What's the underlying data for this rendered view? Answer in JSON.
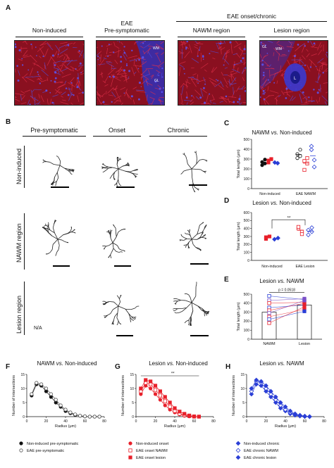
{
  "panelA": {
    "letter": "A",
    "headers": {
      "non_induced": "Non-induced",
      "eae": "EAE",
      "pre_symptomatic": "Pre-symptomatic",
      "onset_chronic": "EAE onset/chronic",
      "nawm_region": "NAWM region",
      "lesion_region": "Lesion region"
    },
    "inset_labels": {
      "wm": "WM",
      "gl": "GL",
      "l": "L"
    }
  },
  "panelB": {
    "letter": "B",
    "columns": [
      "Pre-symptomatic",
      "Onset",
      "Chronic"
    ],
    "rows": [
      "Non-induced",
      "NAWM region",
      "Lesion region"
    ],
    "na_text": "N/A"
  },
  "panelC": {
    "letter": "C",
    "title_a": "NAWM ",
    "title_vs": "vs.",
    "title_b": " Non-induced"
  },
  "panelD": {
    "letter": "D",
    "title_a": "Lesion ",
    "title_vs": "vs.",
    "title_b": " Non-induced",
    "sig": "**"
  },
  "panelE": {
    "letter": "E",
    "title_a": "Lesion ",
    "title_vs": "vs.",
    "title_b": " NAWM",
    "pvalue": "p = 0.0518"
  },
  "panelF": {
    "letter": "F",
    "title_a": "NAWM ",
    "title_vs": "vs.",
    "title_b": " Non-induced"
  },
  "panelG": {
    "letter": "G",
    "title_a": "Lesion ",
    "title_vs": "vs.",
    "title_b": " Non-induced",
    "sig": "**"
  },
  "panelH": {
    "letter": "H",
    "title_a": "Lesion ",
    "title_vs": "vs.",
    "title_b": " NAWM"
  },
  "legends": {
    "F": [
      "Non-induced pre-symptomatic",
      "EAE pre-symptomatic"
    ],
    "G": [
      "Non-induced onset",
      "EAE onset NAWM",
      "EAE onset lesion"
    ],
    "H": [
      "Non-induced chronic",
      "EAE chronic NAWM",
      "EAE chronic lesion"
    ]
  },
  "colors": {
    "black": "#111111",
    "red": "#e8202a",
    "blue": "#2b3fd6",
    "purple": "#7b4fc8",
    "tissue_red": "#c4182c",
    "tissue_blue": "#3a3ad0"
  },
  "chart_data": [
    {
      "id": "C",
      "type": "scatter",
      "ylabel": "Total length (μm)",
      "ylim": [
        0,
        500
      ],
      "yticks": [
        0,
        100,
        200,
        300,
        400,
        500
      ],
      "groups": [
        "Non-induced",
        "EAE NAWM"
      ],
      "series": [
        {
          "group": "Non-induced",
          "color": "#111111",
          "marker": "circle",
          "values": [
            270,
            295,
            238,
            255
          ]
        },
        {
          "group": "Non-induced",
          "color": "#e8202a",
          "marker": "square",
          "values": [
            285,
            300,
            265
          ]
        },
        {
          "group": "Non-induced",
          "color": "#2b3fd6",
          "marker": "diamond",
          "values": [
            265,
            258
          ]
        },
        {
          "group": "EAE NAWM",
          "color": "#111111",
          "marker": "circle-open",
          "values": [
            350,
            330,
            310,
            395
          ]
        },
        {
          "group": "EAE NAWM",
          "color": "#e8202a",
          "marker": "square-open",
          "values": [
            280,
            255,
            190,
            310
          ]
        },
        {
          "group": "EAE NAWM",
          "color": "#2b3fd6",
          "marker": "diamond-open",
          "values": [
            395,
            290,
            430,
            220
          ]
        }
      ]
    },
    {
      "id": "D",
      "type": "scatter",
      "ylabel": "Total length (μm)",
      "ylim": [
        0,
        600
      ],
      "yticks": [
        0,
        100,
        200,
        300,
        400,
        500,
        600
      ],
      "groups": [
        "Non-induced",
        "EAE Lesion"
      ],
      "series": [
        {
          "group": "Non-induced",
          "color": "#e8202a",
          "marker": "square",
          "values": [
            290,
            300,
            270
          ]
        },
        {
          "group": "Non-induced",
          "color": "#2b3fd6",
          "marker": "diamond",
          "values": [
            265,
            280
          ]
        },
        {
          "group": "EAE Lesion",
          "color": "#e8202a",
          "marker": "square-open",
          "values": [
            400,
            360,
            420,
            330
          ]
        },
        {
          "group": "EAE Lesion",
          "color": "#2b3fd6",
          "marker": "diamond-open",
          "values": [
            380,
            410,
            320,
            360
          ]
        }
      ]
    },
    {
      "id": "E",
      "type": "bar",
      "ylabel": "Total length (μm)",
      "ylim": [
        0,
        500
      ],
      "yticks": [
        0,
        100,
        200,
        300,
        400,
        500
      ],
      "categories": [
        "NAWM",
        "Lesion"
      ],
      "values": [
        300,
        380
      ]
    },
    {
      "id": "F",
      "type": "line",
      "xlabel": "Radius (μm)",
      "ylabel": "Number of intersections",
      "xlim": [
        0,
        80
      ],
      "ylim": [
        0,
        15
      ],
      "xticks": [
        0,
        20,
        40,
        60,
        80
      ],
      "yticks": [
        0,
        5,
        10,
        15
      ],
      "x": [
        5,
        10,
        15,
        20,
        25,
        30,
        35,
        40,
        45,
        50,
        55,
        60,
        65,
        70,
        75
      ],
      "series": [
        {
          "name": "Non-induced pre-symptomatic",
          "color": "#111111",
          "values": [
            7.5,
            11.5,
            11,
            9,
            7,
            5,
            3.5,
            2,
            1.2,
            0.6,
            0.3,
            0.1,
            0,
            0,
            0
          ]
        },
        {
          "name": "EAE pre-symptomatic",
          "color": "#555555",
          "values": [
            8,
            12,
            11.5,
            10,
            8,
            6,
            4,
            2.5,
            1.5,
            0.8,
            0.3,
            0.1,
            0,
            0,
            0
          ]
        }
      ]
    },
    {
      "id": "G",
      "type": "line",
      "xlabel": "Radius (μm)",
      "ylabel": "Number of intersections",
      "xlim": [
        0,
        80
      ],
      "ylim": [
        0,
        15
      ],
      "xticks": [
        0,
        20,
        40,
        60,
        80
      ],
      "yticks": [
        0,
        5,
        10,
        15
      ],
      "x": [
        5,
        10,
        15,
        20,
        25,
        30,
        35,
        40,
        45,
        50,
        55,
        60,
        65
      ],
      "series": [
        {
          "name": "Non-induced onset",
          "color": "#e8202a",
          "values": [
            8,
            11,
            10,
            8,
            6,
            4,
            2.5,
            1.5,
            0.8,
            0.3,
            0.1,
            0,
            0
          ]
        },
        {
          "name": "EAE onset NAWM",
          "color": "#e8202a",
          "values": [
            9,
            12,
            11.5,
            9.5,
            7.5,
            5.5,
            3.5,
            2,
            1,
            0.5,
            0.2,
            0,
            0
          ]
        },
        {
          "name": "EAE onset lesion",
          "color": "#e8202a",
          "values": [
            10,
            13,
            12.5,
            11,
            9,
            7,
            5,
            3,
            1.8,
            1,
            0.4,
            0.1,
            0
          ]
        }
      ]
    },
    {
      "id": "H",
      "type": "line",
      "xlabel": "Radius (μm)",
      "ylabel": "Number of intersections",
      "xlim": [
        0,
        80
      ],
      "ylim": [
        0,
        15
      ],
      "xticks": [
        0,
        20,
        40,
        60,
        80
      ],
      "yticks": [
        0,
        5,
        10,
        15
      ],
      "x": [
        5,
        10,
        15,
        20,
        25,
        30,
        35,
        40,
        45,
        50,
        55,
        60,
        65
      ],
      "series": [
        {
          "name": "Non-induced chronic",
          "color": "#2b3fd6",
          "values": [
            8,
            11.5,
            11,
            9,
            7,
            5,
            3,
            2,
            1,
            0.5,
            0.2,
            0,
            0
          ]
        },
        {
          "name": "EAE chronic NAWM",
          "color": "#2b3fd6",
          "values": [
            9,
            12.5,
            12,
            10,
            8,
            6,
            4,
            2.5,
            1.5,
            0.8,
            0.3,
            0.1,
            0
          ]
        },
        {
          "name": "EAE chronic lesion",
          "color": "#2b3fd6",
          "values": [
            10,
            13,
            12.5,
            11,
            9,
            7,
            5,
            3.5,
            2,
            1,
            0.5,
            0.2,
            0
          ]
        }
      ]
    }
  ]
}
